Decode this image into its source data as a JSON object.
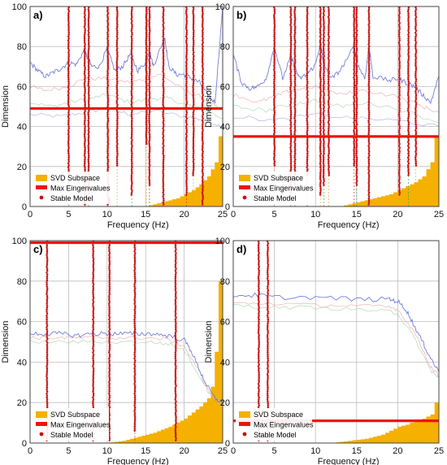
{
  "colors": {
    "svd": "#f5b000",
    "maxeig": "#ee1111",
    "stable": "#c81010",
    "grid": "#bdbdbd",
    "mode_line_orange": "#f0a030",
    "mode_line_red": "#cc2222",
    "mode_line_green": "#22aa44",
    "sv1": "#6e78d8",
    "sv_minor": [
      "#e8a0a0",
      "#a0d0a0",
      "#a0a8e0",
      "#c0c0c0"
    ]
  },
  "chart_data": [
    {
      "panel_label": "a)",
      "type": "line",
      "xlabel": "Frequency (Hz)",
      "ylabel": "Dimension",
      "xlim": [
        0,
        25
      ],
      "ylim": [
        0,
        100
      ],
      "xticks": [
        "0",
        "5",
        "10",
        "15",
        "20",
        "25"
      ],
      "yticks": [
        "0",
        "20",
        "40",
        "60",
        "80",
        "100"
      ],
      "grid": true,
      "legend": [
        "SVD Subspace",
        "Max Eingenvalues",
        "Stable Model"
      ],
      "legend_position": "bottom-left",
      "max_eigenvalues": 49,
      "svd_subspace": [
        [
          15,
          0
        ],
        [
          17,
          2
        ],
        [
          19,
          4
        ],
        [
          20,
          6
        ],
        [
          21,
          8
        ],
        [
          22,
          11
        ],
        [
          23,
          15
        ],
        [
          24,
          22
        ],
        [
          24.5,
          35
        ],
        [
          25,
          45
        ]
      ],
      "stable_modes": [
        {
          "f": 5.0,
          "y0": 15,
          "y1": 100
        },
        {
          "f": 7.1,
          "y0": 0,
          "y1": 100
        },
        {
          "f": 7.6,
          "y0": 5,
          "y1": 100
        },
        {
          "f": 10.1,
          "y0": 0,
          "y1": 100
        },
        {
          "f": 11.3,
          "y0": 20,
          "y1": 100
        },
        {
          "f": 13.2,
          "y0": 5,
          "y1": 100
        },
        {
          "f": 15.1,
          "y0": 30,
          "y1": 100
        },
        {
          "f": 15.5,
          "y0": 10,
          "y1": 100
        },
        {
          "f": 17.3,
          "y0": 0,
          "y1": 100
        },
        {
          "f": 20.3,
          "y0": 5,
          "y1": 100
        },
        {
          "f": 21.2,
          "y0": 15,
          "y1": 100
        },
        {
          "f": 22.4,
          "y0": 0,
          "y1": 100
        }
      ],
      "sv_curves": [
        [
          [
            0,
            72
          ],
          [
            1,
            68
          ],
          [
            2,
            65
          ],
          [
            3,
            67
          ],
          [
            4,
            69
          ],
          [
            5,
            72
          ],
          [
            6,
            71
          ],
          [
            7,
            78
          ],
          [
            7.5,
            74
          ],
          [
            8,
            70
          ],
          [
            9,
            70
          ],
          [
            10,
            79
          ],
          [
            11,
            68
          ],
          [
            12,
            70
          ],
          [
            13,
            76
          ],
          [
            14,
            68
          ],
          [
            15,
            72
          ],
          [
            15.5,
            78
          ],
          [
            16,
            70
          ],
          [
            17,
            80
          ],
          [
            17.5,
            84
          ],
          [
            18,
            70
          ],
          [
            19,
            66
          ],
          [
            20,
            66
          ],
          [
            21,
            64
          ],
          [
            22,
            62
          ],
          [
            23,
            56
          ],
          [
            24,
            52
          ],
          [
            25,
            100
          ]
        ],
        [
          [
            0,
            60
          ],
          [
            2,
            58
          ],
          [
            5,
            60
          ],
          [
            7,
            64
          ],
          [
            10,
            64
          ],
          [
            13,
            62
          ],
          [
            15,
            64
          ],
          [
            17,
            66
          ],
          [
            20,
            58
          ],
          [
            22,
            55
          ],
          [
            24,
            50
          ],
          [
            25,
            48
          ]
        ],
        [
          [
            0,
            52
          ],
          [
            3,
            50
          ],
          [
            5,
            52
          ],
          [
            8,
            54
          ],
          [
            10,
            56
          ],
          [
            13,
            52
          ],
          [
            16,
            54
          ],
          [
            18,
            54
          ],
          [
            21,
            50
          ],
          [
            23,
            48
          ],
          [
            25,
            44
          ]
        ],
        [
          [
            0,
            46
          ],
          [
            4,
            45
          ],
          [
            7,
            47
          ],
          [
            10,
            49
          ],
          [
            13,
            46
          ],
          [
            16,
            48
          ],
          [
            20,
            45
          ],
          [
            23,
            43
          ],
          [
            25,
            40
          ]
        ]
      ]
    },
    {
      "panel_label": "b)",
      "type": "line",
      "xlabel": "Frequency (Hz)",
      "ylabel": "Dimension",
      "xlim": [
        0,
        25
      ],
      "ylim": [
        0,
        100
      ],
      "xticks": [
        "0",
        "5",
        "10",
        "15",
        "20",
        "25"
      ],
      "yticks": [
        "0",
        "20",
        "40",
        "60",
        "80",
        "100"
      ],
      "grid": true,
      "legend": [
        "SVD Subspace",
        "Max Eingenvalues",
        "Stable Model"
      ],
      "legend_position": "bottom-left",
      "max_eigenvalues": 35,
      "svd_subspace": [
        [
          13,
          0
        ],
        [
          15,
          2
        ],
        [
          17,
          4
        ],
        [
          19,
          6
        ],
        [
          20,
          8
        ],
        [
          21,
          10
        ],
        [
          22,
          12
        ],
        [
          23,
          15
        ],
        [
          24,
          22
        ],
        [
          24.5,
          35
        ],
        [
          25,
          47
        ]
      ],
      "stable_modes": [
        {
          "f": 5.0,
          "y0": 20,
          "y1": 100
        },
        {
          "f": 7.0,
          "y0": 5,
          "y1": 100
        },
        {
          "f": 7.5,
          "y0": 10,
          "y1": 100
        },
        {
          "f": 9.0,
          "y0": 15,
          "y1": 100
        },
        {
          "f": 10.6,
          "y0": 5,
          "y1": 100
        },
        {
          "f": 11.0,
          "y0": 10,
          "y1": 100
        },
        {
          "f": 11.6,
          "y0": 15,
          "y1": 100
        },
        {
          "f": 14.7,
          "y0": 20,
          "y1": 100
        },
        {
          "f": 15.0,
          "y0": 10,
          "y1": 100
        },
        {
          "f": 16.5,
          "y0": 0,
          "y1": 100
        },
        {
          "f": 20.2,
          "y0": 5,
          "y1": 100
        },
        {
          "f": 21.3,
          "y0": 15,
          "y1": 100
        },
        {
          "f": 22.2,
          "y0": 20,
          "y1": 100
        }
      ],
      "sv_curves": [
        [
          [
            0,
            76
          ],
          [
            1,
            62
          ],
          [
            2,
            59
          ],
          [
            3,
            60
          ],
          [
            4,
            64
          ],
          [
            5,
            80
          ],
          [
            6,
            64
          ],
          [
            7,
            75
          ],
          [
            7.5,
            70
          ],
          [
            8,
            64
          ],
          [
            9,
            66
          ],
          [
            10,
            71
          ],
          [
            10.6,
            82
          ],
          [
            11,
            70
          ],
          [
            12,
            64
          ],
          [
            13,
            68
          ],
          [
            14.7,
            80
          ],
          [
            15,
            72
          ],
          [
            16,
            64
          ],
          [
            16.5,
            80
          ],
          [
            17,
            65
          ],
          [
            19,
            63
          ],
          [
            20,
            64
          ],
          [
            21,
            62
          ],
          [
            22,
            60
          ],
          [
            23,
            56
          ],
          [
            24,
            52
          ],
          [
            25,
            65
          ]
        ],
        [
          [
            0,
            56
          ],
          [
            3,
            52
          ],
          [
            5,
            55
          ],
          [
            7,
            58
          ],
          [
            10,
            60
          ],
          [
            13,
            56
          ],
          [
            16,
            58
          ],
          [
            20,
            55
          ],
          [
            23,
            50
          ],
          [
            25,
            47
          ]
        ],
        [
          [
            0,
            50
          ],
          [
            4,
            48
          ],
          [
            7,
            51
          ],
          [
            10,
            53
          ],
          [
            13,
            50
          ],
          [
            16,
            52
          ],
          [
            20,
            49
          ],
          [
            25,
            42
          ]
        ],
        [
          [
            0,
            45
          ],
          [
            5,
            43
          ],
          [
            10,
            46
          ],
          [
            15,
            44
          ],
          [
            20,
            43
          ],
          [
            25,
            40
          ]
        ]
      ]
    },
    {
      "panel_label": "c)",
      "type": "line",
      "xlabel": "Frequency (Hz)",
      "ylabel": "Dimension",
      "xlim": [
        0,
        25
      ],
      "ylim": [
        0,
        100
      ],
      "xticks": [
        "0",
        "5",
        "10",
        "15",
        "20",
        "25"
      ],
      "yticks": [
        "0",
        "20",
        "40",
        "60",
        "80",
        "100"
      ],
      "grid": true,
      "legend": [
        "SVD Subspace",
        "Max Eingenvalues",
        "Stable Model"
      ],
      "legend_position": "bottom-left",
      "max_eigenvalues": 99,
      "svd_subspace": [
        [
          10,
          0
        ],
        [
          12,
          1
        ],
        [
          14,
          3
        ],
        [
          16,
          5
        ],
        [
          18,
          8
        ],
        [
          20,
          12
        ],
        [
          21,
          15
        ],
        [
          22,
          18
        ],
        [
          23,
          22
        ],
        [
          23.7,
          30
        ],
        [
          24,
          45
        ],
        [
          24.5,
          80
        ],
        [
          25,
          100
        ]
      ],
      "stable_modes": [
        {
          "f": 2.2,
          "y0": 0,
          "y1": 100
        },
        {
          "f": 8.2,
          "y0": 0,
          "y1": 100
        },
        {
          "f": 10.3,
          "y0": 0,
          "y1": 100
        },
        {
          "f": 13.6,
          "y0": 5,
          "y1": 100
        },
        {
          "f": 18.9,
          "y0": 0,
          "y1": 100
        }
      ],
      "sv_curves": [
        [
          [
            0,
            54
          ],
          [
            2,
            54
          ],
          [
            4,
            54
          ],
          [
            6,
            53
          ],
          [
            8,
            54
          ],
          [
            10,
            54
          ],
          [
            12,
            54
          ],
          [
            14,
            54
          ],
          [
            16,
            54
          ],
          [
            18,
            53
          ],
          [
            20,
            51
          ],
          [
            21,
            45
          ],
          [
            22,
            36
          ],
          [
            23,
            28
          ],
          [
            24,
            22
          ],
          [
            25,
            20
          ]
        ],
        [
          [
            0,
            52
          ],
          [
            3,
            52
          ],
          [
            6,
            52
          ],
          [
            9,
            52
          ],
          [
            12,
            52
          ],
          [
            15,
            52
          ],
          [
            18,
            51
          ],
          [
            20,
            48
          ],
          [
            22,
            35
          ],
          [
            23,
            26
          ],
          [
            25,
            18
          ]
        ],
        [
          [
            0,
            50
          ],
          [
            5,
            50
          ],
          [
            10,
            50
          ],
          [
            15,
            50
          ],
          [
            18,
            49
          ],
          [
            20,
            46
          ],
          [
            22,
            33
          ],
          [
            24,
            22
          ],
          [
            25,
            18
          ]
        ]
      ]
    },
    {
      "panel_label": "d)",
      "type": "line",
      "xlabel": "Frequency (Hz)",
      "ylabel": "Dimension",
      "xlim": [
        0,
        25
      ],
      "ylim": [
        0,
        100
      ],
      "xticks": [
        "0",
        "5",
        "10",
        "15",
        "20",
        "25"
      ],
      "yticks": [
        "0",
        "20",
        "40",
        "60",
        "80",
        "100"
      ],
      "grid": true,
      "legend": [
        "SVD Subspace",
        "Max Eingenvalues",
        "Stable Model"
      ],
      "legend_position": "bottom-left",
      "max_eigenvalues": 11,
      "svd_subspace": [
        [
          12,
          0
        ],
        [
          14,
          1
        ],
        [
          16,
          2
        ],
        [
          18,
          4
        ],
        [
          19,
          6
        ],
        [
          20,
          8
        ],
        [
          21,
          9
        ],
        [
          22,
          11
        ],
        [
          23,
          12
        ],
        [
          24,
          14
        ],
        [
          24.5,
          20
        ],
        [
          25,
          48
        ]
      ],
      "stable_modes": [
        {
          "f": 3.1,
          "y0": 0,
          "y1": 100
        },
        {
          "f": 4.2,
          "y0": 0,
          "y1": 100
        }
      ],
      "sv_curves": [
        [
          [
            0,
            73
          ],
          [
            3,
            73
          ],
          [
            5,
            72
          ],
          [
            10,
            72
          ],
          [
            15,
            71
          ],
          [
            19,
            71
          ],
          [
            20,
            70
          ],
          [
            21,
            66
          ],
          [
            22,
            58
          ],
          [
            23,
            50
          ],
          [
            24,
            42
          ],
          [
            25,
            35
          ]
        ],
        [
          [
            0,
            69
          ],
          [
            5,
            69
          ],
          [
            10,
            68
          ],
          [
            15,
            68
          ],
          [
            19,
            67
          ],
          [
            20,
            66
          ],
          [
            22,
            55
          ],
          [
            24,
            38
          ],
          [
            25,
            33
          ]
        ],
        [
          [
            0,
            68
          ],
          [
            5,
            67
          ],
          [
            10,
            67
          ],
          [
            15,
            66
          ],
          [
            19,
            65
          ],
          [
            20,
            64
          ],
          [
            22,
            52
          ],
          [
            24,
            36
          ],
          [
            25,
            32
          ]
        ]
      ]
    }
  ]
}
